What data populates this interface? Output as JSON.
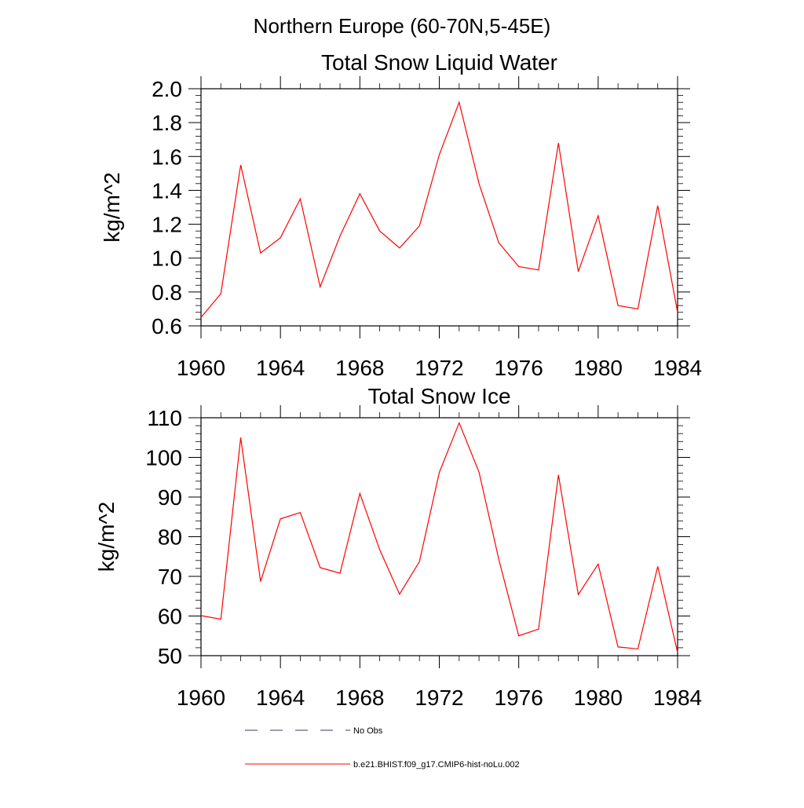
{
  "figure": {
    "main_title": "Northern Europe (60-70N,5-45E)"
  },
  "chart_data": [
    {
      "type": "line",
      "title": "Total Snow Liquid Water",
      "xlabel": "",
      "ylabel": "kg/m^2",
      "xlim": [
        1960,
        1984
      ],
      "ylim": [
        0.6,
        2.0
      ],
      "xticks": [
        1960,
        1964,
        1968,
        1972,
        1976,
        1980,
        1984
      ],
      "yticks": [
        0.6,
        0.8,
        1.0,
        1.2,
        1.4,
        1.6,
        1.8,
        2.0
      ],
      "ytick_labels": [
        "0.6",
        "0.8",
        "1.0",
        "1.2",
        "1.4",
        "1.6",
        "1.8",
        "2.0"
      ],
      "grid": false,
      "x": [
        1960,
        1961,
        1962,
        1963,
        1964,
        1965,
        1966,
        1967,
        1968,
        1969,
        1970,
        1971,
        1972,
        1973,
        1974,
        1975,
        1976,
        1977,
        1978,
        1979,
        1980,
        1981,
        1982,
        1983,
        1984
      ],
      "series": [
        {
          "name": "b.e21.BHIST.f09_g17.CMIP6-hist-noLu.002",
          "color": "#ff0000",
          "values": [
            0.65,
            0.79,
            1.55,
            1.03,
            1.12,
            1.35,
            0.83,
            1.13,
            1.38,
            1.16,
            1.06,
            1.19,
            1.61,
            1.92,
            1.44,
            1.09,
            0.95,
            0.93,
            1.68,
            0.92,
            1.25,
            0.72,
            0.7,
            1.31,
            0.68
          ]
        }
      ]
    },
    {
      "type": "line",
      "title": "Total Snow Ice",
      "xlabel": "",
      "ylabel": "kg/m^2",
      "xlim": [
        1960,
        1984
      ],
      "ylim": [
        50,
        110
      ],
      "xticks": [
        1960,
        1964,
        1968,
        1972,
        1976,
        1980,
        1984
      ],
      "yticks": [
        50,
        60,
        70,
        80,
        90,
        100,
        110
      ],
      "ytick_labels": [
        "50",
        "60",
        "70",
        "80",
        "90",
        "100",
        "110"
      ],
      "grid": false,
      "x": [
        1960,
        1961,
        1962,
        1963,
        1964,
        1965,
        1966,
        1967,
        1968,
        1969,
        1970,
        1971,
        1972,
        1973,
        1974,
        1975,
        1976,
        1977,
        1978,
        1979,
        1980,
        1981,
        1982,
        1983,
        1984
      ],
      "series": [
        {
          "name": "b.e21.BHIST.f09_g17.CMIP6-hist-noLu.002",
          "color": "#ff0000",
          "values": [
            60.1,
            59.2,
            105.0,
            68.7,
            84.5,
            86.1,
            72.2,
            70.8,
            90.9,
            76.7,
            65.5,
            73.7,
            96.2,
            108.7,
            96.3,
            74.2,
            55.0,
            56.7,
            95.6,
            65.4,
            73.1,
            52.2,
            51.7,
            72.5,
            50.8
          ]
        }
      ]
    }
  ],
  "legend": {
    "placement": "bottom",
    "entries": [
      {
        "label": "No Obs",
        "color": "#3a3a6a",
        "style": "dashed"
      },
      {
        "label": "b.e21.BHIST.f09_g17.CMIP6-hist-noLu.002",
        "color": "#ff0000",
        "style": "solid"
      }
    ]
  }
}
